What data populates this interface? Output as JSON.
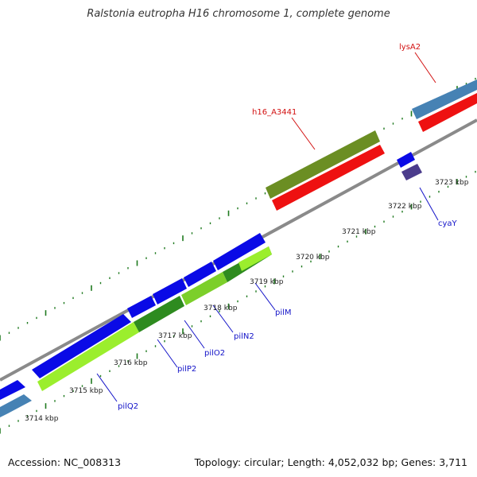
{
  "title": "Ralstonia eutropha H16 chromosome 1, complete genome",
  "footer": {
    "accession": "Accession: NC_008313",
    "topology": "Topology: circular; Length: 4,052,032 bp; Genes: 3,711"
  },
  "colors": {
    "backbone": "#8a8a8a",
    "tick": "#1f7a1f",
    "red_feature": "#ee1111",
    "olive_feature": "#6b8e23",
    "steelblue_feature": "#4682b4",
    "blue_feature": "#0a0ae6",
    "slate_feature": "#4b3c8c",
    "lime_feature": "#9bee2d",
    "green_feature": "#2e8b1f",
    "blue_label": "#1212c8",
    "red_label": "#d21010"
  },
  "scale_labels": [
    "3714 kbp",
    "3715 kbp",
    "3716 kbp",
    "3717 kbp",
    "3718 kbp",
    "3719 kbp",
    "3720 kbp",
    "3721 kbp",
    "3722 kbp",
    "3723 kbp"
  ],
  "gene_labels": {
    "pilQ2": "pilQ2",
    "pilP2": "pilP2",
    "pilO2": "pilO2",
    "pilN2": "pilN2",
    "pilM": "pilM",
    "cyaY": "cyaY",
    "h16_A3441": "h16_A3441",
    "lysA2": "lysA2"
  }
}
